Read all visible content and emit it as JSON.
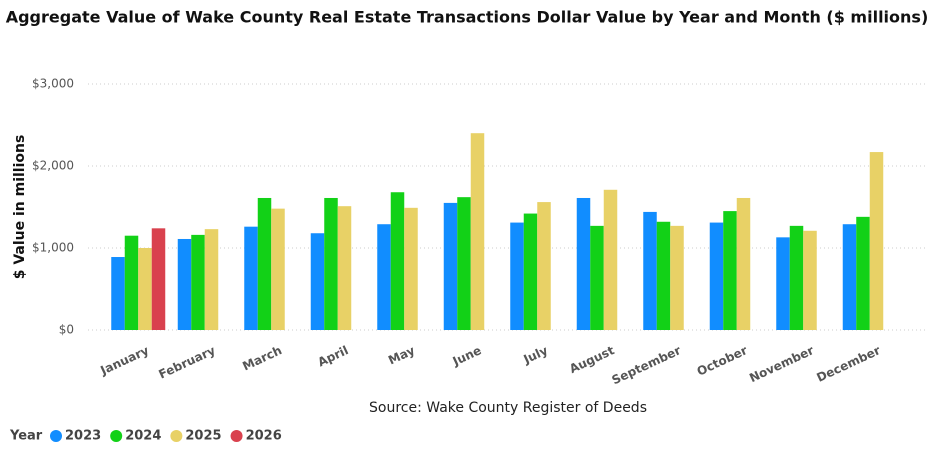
{
  "chart_data": {
    "type": "bar",
    "title": "Aggregate Value of Wake County Real Estate Transactions Dollar Value by Year and Month ($ millions)",
    "y_label": "$ Value in millions",
    "source": "Source: Wake County Register of Deeds",
    "legend_title": "Year",
    "categories": [
      "January",
      "February",
      "March",
      "April",
      "May",
      "June",
      "July",
      "August",
      "September",
      "October",
      "November",
      "December"
    ],
    "series": [
      {
        "name": "2023",
        "color": "#118dff",
        "values": [
          890,
          1110,
          1260,
          1180,
          1290,
          1550,
          1310,
          1610,
          1440,
          1310,
          1130,
          1290
        ]
      },
      {
        "name": "2024",
        "color": "#12d117",
        "values": [
          1150,
          1160,
          1610,
          1610,
          1680,
          1620,
          1420,
          1270,
          1320,
          1450,
          1270,
          1380
        ]
      },
      {
        "name": "2025",
        "color": "#e8d166",
        "values": [
          1000,
          1230,
          1480,
          1510,
          1490,
          2400,
          1560,
          1710,
          1270,
          1610,
          1210,
          2170
        ]
      },
      {
        "name": "2026",
        "color": "#d9414e",
        "values": [
          1240,
          null,
          null,
          null,
          null,
          null,
          null,
          null,
          null,
          null,
          null,
          null
        ]
      }
    ],
    "ylim": [
      0,
      3000
    ],
    "yticks": [
      {
        "value": 0,
        "label": "$0"
      },
      {
        "value": 1000,
        "label": "$1,000"
      },
      {
        "value": 2000,
        "label": "$2,000"
      },
      {
        "value": 3000,
        "label": "$3,000"
      }
    ],
    "grid": true
  }
}
